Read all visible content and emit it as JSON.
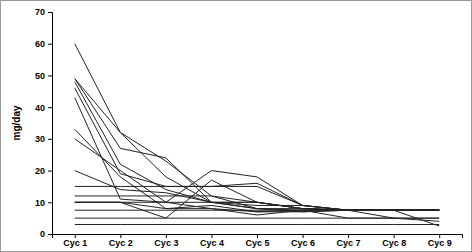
{
  "chart_data": {
    "type": "line",
    "y_label": "mg/day",
    "color": "#222222",
    "grid": false,
    "categories": [
      "Cyc 1",
      "Cyc 2",
      "Cyc 3",
      "Cyc 4",
      "Cyc 5",
      "Cyc 6",
      "Cyc 7",
      "Cyc 8",
      "Cyc 9"
    ],
    "ylim": [
      0,
      70
    ],
    "yticks": [
      0,
      10,
      20,
      30,
      40,
      50,
      60,
      70
    ],
    "series": [
      {
        "values": [
          60,
          32,
          18,
          10,
          8,
          8,
          7.5,
          7.5,
          7.5
        ]
      },
      {
        "values": [
          49,
          32,
          23,
          12,
          8,
          7,
          7.5,
          7.5,
          7.5
        ]
      },
      {
        "values": [
          49,
          27,
          24,
          10,
          10,
          8,
          7.5,
          7.5,
          7.5
        ]
      },
      {
        "values": [
          48,
          22,
          14,
          10,
          9,
          9,
          7.5,
          7.5,
          7.5
        ]
      },
      {
        "values": [
          46,
          19,
          15,
          15,
          16,
          9,
          7.5,
          7.5,
          7.5
        ]
      },
      {
        "values": [
          43,
          11,
          10,
          8,
          7,
          7,
          7.5,
          7.5,
          7.5
        ]
      },
      {
        "values": [
          33,
          18,
          8,
          9,
          7,
          7.5,
          7.5,
          7.5,
          7.5
        ]
      },
      {
        "values": [
          30,
          20,
          10,
          20,
          18,
          9,
          7.5,
          7.5,
          7.5
        ]
      },
      {
        "values": [
          20,
          14,
          13,
          10,
          8,
          7.5,
          7.5,
          7.5,
          7.5
        ]
      },
      {
        "values": [
          15,
          15,
          15,
          15,
          15,
          9,
          7.5,
          7.5,
          7.5
        ]
      },
      {
        "values": [
          12,
          12,
          12,
          12,
          10,
          8,
          7.5,
          7.5,
          7.5
        ]
      },
      {
        "values": [
          10,
          10,
          10,
          10,
          10,
          8,
          7.5,
          7.5,
          7.5
        ]
      },
      {
        "values": [
          10,
          10,
          5,
          17,
          10,
          8,
          7.5,
          7.5,
          2.5
        ]
      },
      {
        "values": [
          7.5,
          7.5,
          7.5,
          7.5,
          7.5,
          7.5,
          7.5,
          5,
          5
        ]
      },
      {
        "values": [
          5,
          5,
          5,
          5,
          5,
          5,
          5,
          5,
          5
        ]
      },
      {
        "values": [
          3,
          3,
          3,
          3,
          3,
          3,
          3,
          3,
          3
        ]
      },
      {
        "values": [
          10,
          10,
          8,
          8,
          6,
          7.5,
          5,
          5,
          4
        ]
      }
    ]
  }
}
